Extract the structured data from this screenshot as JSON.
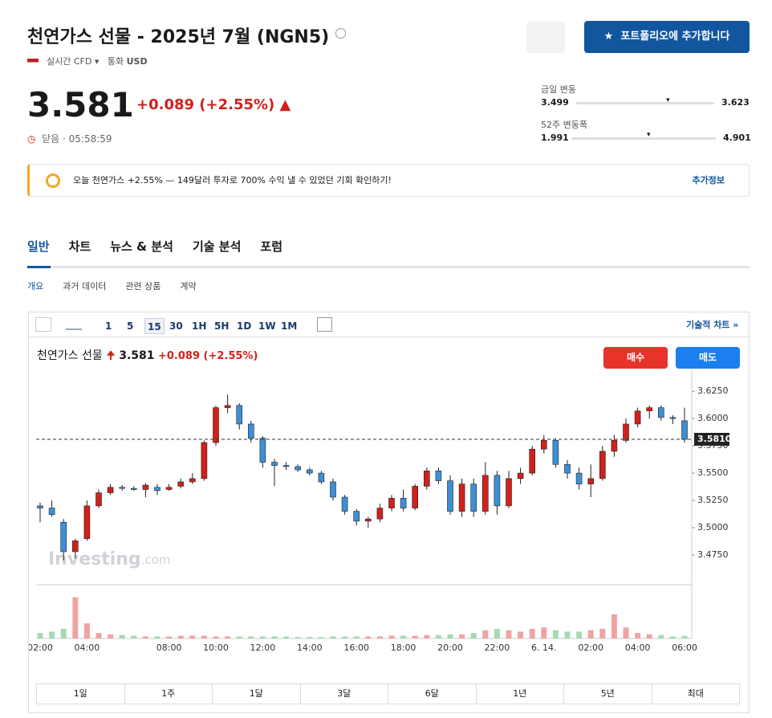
{
  "header": {
    "title": "천연가스 선물 - 2025년 7월 (NGN5)",
    "market": "실시간 CFD",
    "currency_label": "통화",
    "currency": "USD",
    "add_portfolio": "포트폴리오에 추가합니다",
    "price": "3.581",
    "change": "+0.089 (+2.55%)",
    "status": "닫음 · 05:58:59"
  },
  "ranges": [
    {
      "label": "금일 변동",
      "low": "3.499",
      "high": "3.623"
    },
    {
      "label": "52주 변동폭",
      "low": "1.991",
      "high": "4.901"
    }
  ],
  "banner": {
    "text": "오늘 천연가스 +2.55% — 149달러 투자로 700% 수익 낼 수 있었던 기회 확인하기!",
    "link": "추가정보"
  },
  "tabs": [
    "일반",
    "차트",
    "뉴스 & 분석",
    "기술 분석",
    "포럼"
  ],
  "subtabs": [
    "개요",
    "과거 데이터",
    "관련 상품",
    "계약"
  ],
  "toolbar": {
    "intervals": [
      "1",
      "5",
      "15",
      "30",
      "1H",
      "5H",
      "1D",
      "1W",
      "1M"
    ],
    "technical": "기술적 차트 »"
  },
  "legend": {
    "name": "천연가스 선물",
    "price": "3.581",
    "change": "+0.089 (+2.55%)",
    "buy": "매수",
    "sell": "매도"
  },
  "watermark": {
    "brand": "Investing",
    "suffix": ".com"
  },
  "periods": [
    "1일",
    "1주",
    "1달",
    "3달",
    "6달",
    "1년",
    "5년",
    "최대"
  ],
  "chart_data": {
    "type": "candlestick",
    "categories": [
      "02:00",
      null,
      null,
      null,
      "04:00",
      null,
      null,
      null,
      null,
      null,
      null,
      "08:00",
      null,
      null,
      null,
      "10:00",
      null,
      null,
      null,
      "12:00",
      null,
      null,
      null,
      "14:00",
      null,
      null,
      null,
      "16:00",
      null,
      null,
      null,
      "18:00",
      null,
      null,
      null,
      "20:00",
      null,
      null,
      null,
      "22:00",
      null,
      null,
      null,
      "6. 14.",
      null,
      null,
      null,
      "02:00",
      null,
      null,
      null,
      "04:00",
      null,
      null,
      null,
      "06:00"
    ],
    "open": [
      3.52,
      3.518,
      3.505,
      3.478,
      3.49,
      3.52,
      3.532,
      3.537,
      3.536,
      3.535,
      3.537,
      3.535,
      3.538,
      3.542,
      3.545,
      3.578,
      3.61,
      3.612,
      3.595,
      3.582,
      3.56,
      3.557,
      3.556,
      3.553,
      3.55,
      3.542,
      3.528,
      3.515,
      3.506,
      3.508,
      3.518,
      3.527,
      3.518,
      3.538,
      3.552,
      3.543,
      3.515,
      3.54,
      3.515,
      3.548,
      3.52,
      3.545,
      3.55,
      3.572,
      3.58,
      3.558,
      3.55,
      3.54,
      3.545,
      3.57,
      3.58,
      3.595,
      3.607,
      3.61,
      3.601,
      3.598
    ],
    "high": [
      3.523,
      3.525,
      3.508,
      3.49,
      3.525,
      3.535,
      3.54,
      3.539,
      3.538,
      3.541,
      3.54,
      3.54,
      3.545,
      3.55,
      3.58,
      3.612,
      3.622,
      3.614,
      3.598,
      3.584,
      3.563,
      3.56,
      3.558,
      3.555,
      3.552,
      3.545,
      3.53,
      3.517,
      3.51,
      3.522,
      3.53,
      3.535,
      3.54,
      3.555,
      3.555,
      3.548,
      3.545,
      3.545,
      3.56,
      3.552,
      3.552,
      3.555,
      3.575,
      3.585,
      3.582,
      3.562,
      3.555,
      3.558,
      3.575,
      3.585,
      3.6,
      3.61,
      3.612,
      3.612,
      3.603,
      3.61
    ],
    "low": [
      3.505,
      3.51,
      3.47,
      3.472,
      3.488,
      3.518,
      3.53,
      3.534,
      3.534,
      3.528,
      3.53,
      3.534,
      3.536,
      3.54,
      3.543,
      3.575,
      3.605,
      3.59,
      3.578,
      3.555,
      3.538,
      3.553,
      3.551,
      3.548,
      3.54,
      3.525,
      3.512,
      3.502,
      3.5,
      3.505,
      3.515,
      3.515,
      3.516,
      3.535,
      3.54,
      3.512,
      3.51,
      3.51,
      3.512,
      3.512,
      3.518,
      3.54,
      3.548,
      3.568,
      3.555,
      3.545,
      3.535,
      3.528,
      3.543,
      3.565,
      3.578,
      3.592,
      3.6,
      3.598,
      3.595,
      3.578
    ],
    "close": [
      3.518,
      3.512,
      3.478,
      3.488,
      3.52,
      3.532,
      3.537,
      3.536,
      3.535,
      3.539,
      3.534,
      3.537,
      3.542,
      3.545,
      3.578,
      3.61,
      3.612,
      3.595,
      3.582,
      3.56,
      3.557,
      3.556,
      3.553,
      3.55,
      3.542,
      3.528,
      3.515,
      3.506,
      3.508,
      3.518,
      3.527,
      3.518,
      3.538,
      3.552,
      3.543,
      3.515,
      3.54,
      3.515,
      3.548,
      3.52,
      3.545,
      3.55,
      3.572,
      3.58,
      3.558,
      3.55,
      3.54,
      3.545,
      3.57,
      3.58,
      3.595,
      3.607,
      3.61,
      3.601,
      3.6,
      3.581
    ],
    "volume": [
      8,
      10,
      14,
      60,
      22,
      8,
      6,
      5,
      4,
      3,
      3,
      3,
      4,
      4,
      4,
      3,
      3,
      3,
      3,
      3,
      3,
      3,
      2,
      2,
      2,
      3,
      3,
      3,
      3,
      3,
      4,
      4,
      4,
      5,
      5,
      6,
      6,
      8,
      12,
      14,
      12,
      10,
      14,
      16,
      12,
      10,
      10,
      12,
      14,
      35,
      16,
      8,
      6,
      5,
      3,
      4
    ],
    "up_color": "#d0211c",
    "down_color": "#3d8fd6",
    "volume_up_color": "#f0a3a3",
    "volume_down_color": "#a6d9b2",
    "ylim": [
      3.45,
      3.645
    ],
    "yticks": [
      {
        "value": 3.475,
        "label": "3.4750"
      },
      {
        "value": 3.5,
        "label": "3.5000"
      },
      {
        "value": 3.525,
        "label": "3.5250"
      },
      {
        "value": 3.55,
        "label": "3.5500"
      },
      {
        "value": 3.575,
        "label": "3.5750"
      },
      {
        "value": 3.6,
        "label": "3.6000"
      },
      {
        "value": 3.625,
        "label": "3.6250"
      }
    ],
    "last_price": {
      "value": 3.581,
      "label": "3.5810"
    },
    "vlim": [
      0,
      70
    ]
  }
}
